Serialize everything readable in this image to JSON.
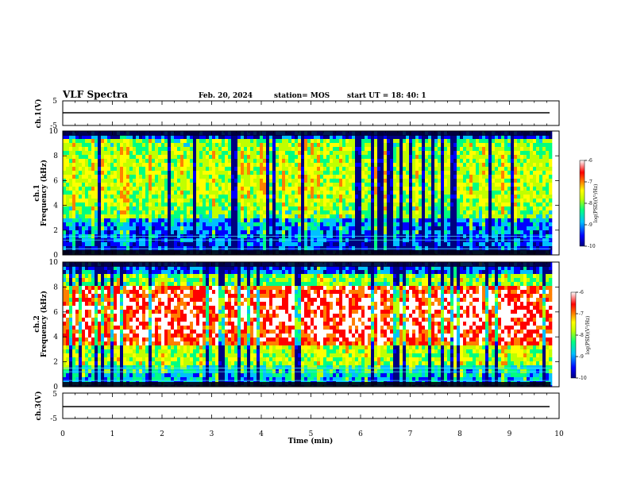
{
  "header": {
    "title": "VLF Spectra",
    "date": "Feb. 20, 2024",
    "station": "station= MOS",
    "start": "start UT = 18: 40: 1"
  },
  "chart_data": {
    "type": "heatmap",
    "xlabel": "Time (min)",
    "xlim": [
      0,
      10
    ],
    "xticks": [
      "0",
      "1",
      "2",
      "3",
      "4",
      "5",
      "6",
      "7",
      "8",
      "9",
      "10"
    ],
    "data_end_min": 9.83,
    "panels": [
      {
        "key": "ch1_volt",
        "type": "line",
        "ylabel": "ch.1(V)",
        "ylim": [
          -5,
          5
        ],
        "yticks": [
          "5",
          "-5"
        ],
        "series": [
          {
            "values_constant": -0.5
          }
        ]
      },
      {
        "key": "ch1_spec",
        "type": "heatmap",
        "ylabel": "ch.1\nFrequency (kHz)",
        "ylim": [
          0,
          10
        ],
        "yticks": [
          "0",
          "2",
          "4",
          "6",
          "8",
          "10"
        ],
        "colorbar": {
          "label": "log(PSD)(V²/Hz)",
          "range": [
            -10,
            -6
          ],
          "ticks": [
            "-6",
            "-7",
            "-8",
            "-9",
            "-10"
          ]
        }
      },
      {
        "key": "ch2_spec",
        "type": "heatmap",
        "ylabel": "ch.2\nFrequency (kHz)",
        "ylim": [
          0,
          10
        ],
        "yticks": [
          "0",
          "2",
          "4",
          "6",
          "8",
          "10"
        ],
        "colorbar": {
          "label": "log(PSD)(V²/Hz)",
          "range": [
            -10,
            -6
          ],
          "ticks": [
            "-6",
            "-7",
            "-8",
            "-9",
            "-10"
          ]
        }
      },
      {
        "key": "ch3_volt",
        "type": "line",
        "ylabel": "ch.3(V)",
        "ylim": [
          -5,
          5
        ],
        "yticks": [
          "5",
          "-5"
        ],
        "series": [
          {
            "values_constant": -0.5
          }
        ]
      }
    ],
    "colormap": [
      "#000080",
      "#0000ff",
      "#00c0ff",
      "#00ff80",
      "#c0ff00",
      "#ffff00",
      "#ff8000",
      "#ff0000",
      "#ffffff"
    ]
  }
}
